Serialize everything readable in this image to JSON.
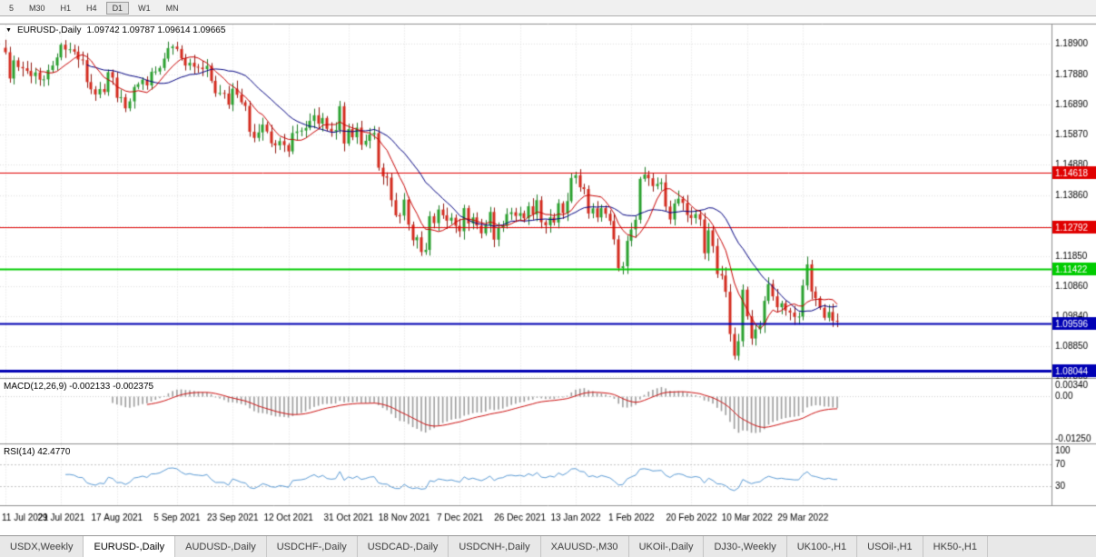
{
  "toolbar": {
    "timeframes": [
      "5",
      "M30",
      "H1",
      "H4",
      "D1",
      "W1",
      "MN"
    ],
    "active": "D1"
  },
  "chart_header": {
    "collapse_icon": "▼",
    "symbol": "EURUSD-,Daily",
    "ohlc": "1.09742 1.09787 1.09614 1.09665"
  },
  "indicators": {
    "macd": {
      "label": "MACD(12,26,9) -0.002133 -0.002375"
    },
    "rsi": {
      "label": "RSI(14) 42.4770"
    }
  },
  "tabs": [
    "USDX,Weekly",
    "EURUSD-,Daily",
    "AUDUSD-,Daily",
    "USDCHF-,Daily",
    "USDCAD-,Daily",
    "USDCNH-,Daily",
    "XAUUSD-,M30",
    "UKOil-,Daily",
    "DJ30-,Weekly",
    "UK100-,H1",
    "USOil-,H1",
    "HK50-,H1"
  ],
  "active_tab": "EURUSD-,Daily",
  "chart_data": {
    "type": "candlestick",
    "title": "EURUSD-,Daily",
    "last_candle": {
      "open": 1.09742,
      "high": 1.09787,
      "low": 1.09614,
      "close": 1.09665
    },
    "x_ticks": [
      "11 Jul 2021",
      "29 Jul 2021",
      "17 Aug 2021",
      "5 Sep 2021",
      "23 Sep 2021",
      "12 Oct 2021",
      "31 Oct 2021",
      "18 Nov 2021",
      "7 Dec 2021",
      "26 Dec 2021",
      "13 Jan 2022",
      "1 Feb 2022",
      "20 Feb 2022",
      "10 Mar 2022",
      "29 Mar 2022"
    ],
    "x_tick_indices": [
      0,
      13,
      26,
      40,
      53,
      66,
      80,
      93,
      106,
      120,
      133,
      146,
      160,
      173,
      186
    ],
    "y_ticks": [
      1.189,
      1.1788,
      1.1689,
      1.1587,
      1.1488,
      1.1386,
      1.1284,
      1.1185,
      1.1086,
      1.0984,
      1.0885,
      1.0786
    ],
    "y_range": [
      1.078,
      1.195
    ],
    "closes": [
      1.1861,
      1.1774,
      1.1834,
      1.1812,
      1.1808,
      1.1799,
      1.1782,
      1.1794,
      1.177,
      1.1771,
      1.1802,
      1.1817,
      1.1844,
      1.1886,
      1.187,
      1.1871,
      1.1863,
      1.1837,
      1.1835,
      1.1762,
      1.1738,
      1.1721,
      1.1739,
      1.1729,
      1.1795,
      1.1777,
      1.171,
      1.1712,
      1.1675,
      1.1698,
      1.1746,
      1.1755,
      1.177,
      1.1751,
      1.1796,
      1.1797,
      1.1809,
      1.184,
      1.1875,
      1.188,
      1.1872,
      1.1841,
      1.1817,
      1.1826,
      1.1813,
      1.181,
      1.1805,
      1.1816,
      1.1766,
      1.1725,
      1.1726,
      1.1724,
      1.1687,
      1.174,
      1.172,
      1.1695,
      1.1683,
      1.1597,
      1.1577,
      1.1595,
      1.1621,
      1.1598,
      1.1559,
      1.1552,
      1.1566,
      1.1553,
      1.1532,
      1.1593,
      1.1598,
      1.1601,
      1.161,
      1.1633,
      1.1652,
      1.1624,
      1.1643,
      1.1607,
      1.1598,
      1.1603,
      1.1682,
      1.1558,
      1.1606,
      1.1579,
      1.1611,
      1.1554,
      1.1567,
      1.1588,
      1.1593,
      1.1478,
      1.1449,
      1.1445,
      1.137,
      1.132,
      1.1319,
      1.1372,
      1.1289,
      1.1237,
      1.1247,
      1.1198,
      1.1205,
      1.1317,
      1.1294,
      1.1339,
      1.132,
      1.1302,
      1.1312,
      1.1285,
      1.1267,
      1.1344,
      1.1293,
      1.1313,
      1.1286,
      1.126,
      1.1287,
      1.1331,
      1.1239,
      1.1278,
      1.1287,
      1.1324,
      1.133,
      1.1318,
      1.1327,
      1.131,
      1.135,
      1.1323,
      1.137,
      1.1297,
      1.1287,
      1.1313,
      1.1296,
      1.136,
      1.1327,
      1.1367,
      1.1444,
      1.1453,
      1.1413,
      1.1407,
      1.1326,
      1.1343,
      1.1313,
      1.1344,
      1.1325,
      1.1301,
      1.124,
      1.1145,
      1.1151,
      1.1235,
      1.1273,
      1.1305,
      1.1441,
      1.1455,
      1.1443,
      1.1417,
      1.1424,
      1.1429,
      1.1349,
      1.1306,
      1.1359,
      1.1375,
      1.1361,
      1.1321,
      1.1311,
      1.1324,
      1.1306,
      1.1194,
      1.127,
      1.1218,
      1.1125,
      1.112,
      1.1066,
      1.0926,
      1.0854,
      1.0902,
      1.1073,
      1.0985,
      1.0911,
      1.0941,
      1.0955,
      1.1036,
      1.1092,
      1.1051,
      1.1015,
      1.1028,
      1.1004,
      1.0997,
      1.0983,
      1.0984,
      1.1087,
      1.1157,
      1.1067,
      1.1045,
      1.1013,
      1.098,
      1.0999,
      1.097,
      1.09665
    ],
    "horizontal_lines": [
      {
        "price": 1.14618,
        "label": "1.14618",
        "color": "#e00000",
        "width": 1
      },
      {
        "price": 1.12792,
        "label": "1.12792",
        "color": "#e00000",
        "width": 1
      },
      {
        "price": 1.11422,
        "label": "1.11422",
        "color": "#00cc00",
        "width": 2
      },
      {
        "price": 1.09596,
        "label": "1.09596",
        "color": "#0000b4",
        "width": 2
      },
      {
        "price": 1.08044,
        "label": "1.08044",
        "color": "#0000b4",
        "width": 3
      }
    ],
    "moving_averages": [
      {
        "period": 20,
        "color": "#000080"
      },
      {
        "period": 8,
        "color": "#c80000"
      }
    ],
    "macd": {
      "params": "12,26,9",
      "main": -0.002133,
      "signal": -0.002375,
      "range": [
        -0.0135,
        0.0045
      ],
      "axis_labels": [
        {
          "value": 0.0034,
          "text": "0.00340"
        },
        {
          "value": 0,
          "text": "0.00"
        },
        {
          "value": -0.0125,
          "text": "-0.01250"
        }
      ],
      "hist_color": "#9c9c9c",
      "signal_color": "#cc1111"
    },
    "rsi": {
      "period": 14,
      "current": 42.477,
      "levels": [
        70,
        30
      ],
      "axis_labels": [
        {
          "value": 100,
          "text": "100"
        },
        {
          "value": 70,
          "text": "70"
        },
        {
          "value": 30,
          "text": "30"
        }
      ],
      "color": "#5b9bd5"
    },
    "candle_up_color": "#2aa12e",
    "candle_down_color": "#d42a1d",
    "candle_up_border": "#1d7a24",
    "candle_down_border": "#8f150d"
  }
}
